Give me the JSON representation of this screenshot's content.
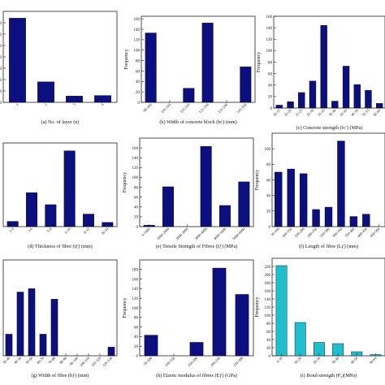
{
  "figure": {
    "bar_color": "#0b0f80",
    "highlight_bar_color": "#1fbfcf",
    "axis_color": "#222222"
  },
  "chart_data": [
    {
      "type": "bar",
      "panel": "a",
      "caption": "(a) No. of layer (n)",
      "ylabel": "",
      "categories": [
        "1",
        "2",
        "3",
        "4"
      ],
      "values": [
        148,
        36,
        11,
        12
      ],
      "yticks": [
        0,
        20,
        40,
        60,
        80,
        100,
        120,
        140
      ],
      "ylim": [
        0,
        160
      ]
    },
    {
      "type": "bar",
      "panel": "b",
      "caption": "(b) Width of concrete block (bᴄ) (mm)",
      "ylabel": "Frequency",
      "categories": [
        "90-100",
        "101-110",
        "111-120",
        "121-130",
        "131-140",
        "141-150"
      ],
      "values": [
        133,
        0,
        27,
        152,
        0,
        68
      ],
      "yticks": [
        0,
        20,
        40,
        60,
        80,
        100,
        120,
        140,
        160
      ],
      "ylim": [
        0,
        165
      ]
    },
    {
      "type": "bar",
      "panel": "c",
      "caption": "(c) Concrete strength (fᴄ′) (MPa)",
      "ylabel": "Frequency",
      "categories": [
        "10-15",
        "16-20",
        "21-25",
        "26-30",
        "31-35",
        "36-40",
        "41-45",
        "46-50",
        "51-55",
        "56-60"
      ],
      "values": [
        5,
        11,
        27,
        47,
        144,
        12,
        73,
        41,
        31,
        8
      ],
      "yticks": [
        0,
        20,
        40,
        60,
        80,
        100,
        120,
        140,
        160
      ],
      "ylim": [
        0,
        160
      ]
    },
    {
      "type": "bar",
      "panel": "d",
      "caption": "(d) Thickness of fibre (tƒ) (mm)",
      "ylabel": "",
      "categories": [
        "2-4",
        "3-6",
        "5-8",
        "6-10",
        "8-12",
        "10-14"
      ],
      "values": [
        10,
        65,
        42,
        145,
        24,
        8
      ],
      "yticks": [],
      "ylim": [
        0,
        160
      ]
    },
    {
      "type": "bar",
      "panel": "e",
      "caption": "(e) Tensile Strength of Fibres (fƒ) (MPa)",
      "ylabel": "Frequency",
      "categories": [
        "0-1000",
        "1000-2000",
        "2000-3000",
        "3000-4000",
        "4000-5000",
        "5000-6000"
      ],
      "values": [
        3,
        81,
        0,
        163,
        43,
        91
      ],
      "yticks": [
        0,
        20,
        40,
        60,
        80,
        100,
        120,
        140,
        160
      ],
      "ylim": [
        0,
        180
      ]
    },
    {
      "type": "bar",
      "panel": "f",
      "caption": "(f) Length of fibre (Lƒ) (mm)",
      "ylabel": "Frequency",
      "categories": [
        "50-100",
        "100-150",
        "150-200",
        "200-250",
        "250-300",
        "300-350",
        "350-400",
        "400-450",
        "450-500"
      ],
      "values": [
        70,
        74,
        68,
        22,
        25,
        110,
        13,
        16,
        0
      ],
      "yticks": [
        0,
        20,
        40,
        60,
        80,
        100
      ],
      "ylim": [
        0,
        120
      ]
    },
    {
      "type": "bar",
      "panel": "g",
      "caption": "(g) Width of fibre (bƒ) (mm)",
      "ylabel": "",
      "categories": [
        "30-40",
        "40-50",
        "50-60",
        "60-70",
        "70-80",
        "80-90",
        "90-100",
        "100-110",
        "110-120",
        "120-130"
      ],
      "values": [
        45,
        133,
        140,
        45,
        118,
        0,
        0,
        0,
        0,
        18
      ],
      "yticks": [],
      "ylim": [
        0,
        200
      ]
    },
    {
      "type": "bar",
      "panel": "h",
      "caption": "(h) Elastic modulus of fibres (Eƒ) (GPa)",
      "ylabel": "Frequency",
      "categories": [
        "50-100",
        "100-150",
        "150-200",
        "200-250",
        "250-300"
      ],
      "values": [
        43,
        0,
        28,
        183,
        128
      ],
      "yticks": [
        0,
        20,
        40,
        60,
        80,
        100,
        120,
        140,
        160,
        180
      ],
      "ylim": [
        0,
        200
      ]
    },
    {
      "type": "bar",
      "panel": "i",
      "caption": "(i) Bond strength (Pᵤ)(MPa)",
      "ylabel": "Frequency",
      "categories": [
        "0-10",
        "10-20",
        "20-30",
        "30-40",
        "40-50",
        "50-60"
      ],
      "values": [
        222,
        82,
        33,
        30,
        10,
        3
      ],
      "yticks": [
        0,
        20,
        40,
        60,
        80,
        100,
        120,
        140,
        160,
        180,
        200,
        220
      ],
      "ylim": [
        0,
        240
      ]
    }
  ]
}
